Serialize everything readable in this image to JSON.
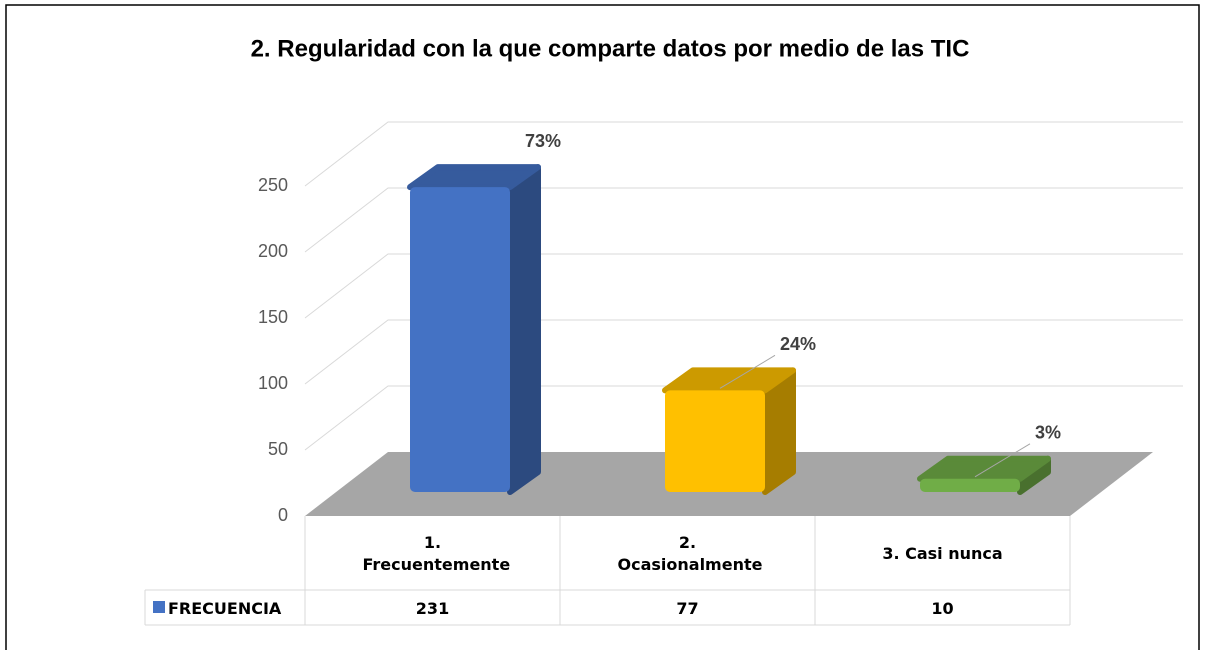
{
  "chart_data": {
    "type": "bar3d",
    "title": "2. Regularidad con la que comparte datos por medio de las TIC",
    "categories": [
      "1. Frecuentemente",
      "2. Ocasionalmente",
      "3. Casi nunca"
    ],
    "series": [
      {
        "name": "FRECUENCIA",
        "color": "#4472c4",
        "colors": [
          "#4472c4",
          "#ffc000",
          "#70ad47"
        ],
        "values": [
          231,
          77,
          10
        ],
        "value_labels": [
          "73%",
          "24%",
          "3%"
        ]
      }
    ],
    "ylim": [
      0,
      250
    ],
    "yticks": [
      0,
      50,
      100,
      150,
      200,
      250
    ],
    "grid": true,
    "data_table": true
  }
}
